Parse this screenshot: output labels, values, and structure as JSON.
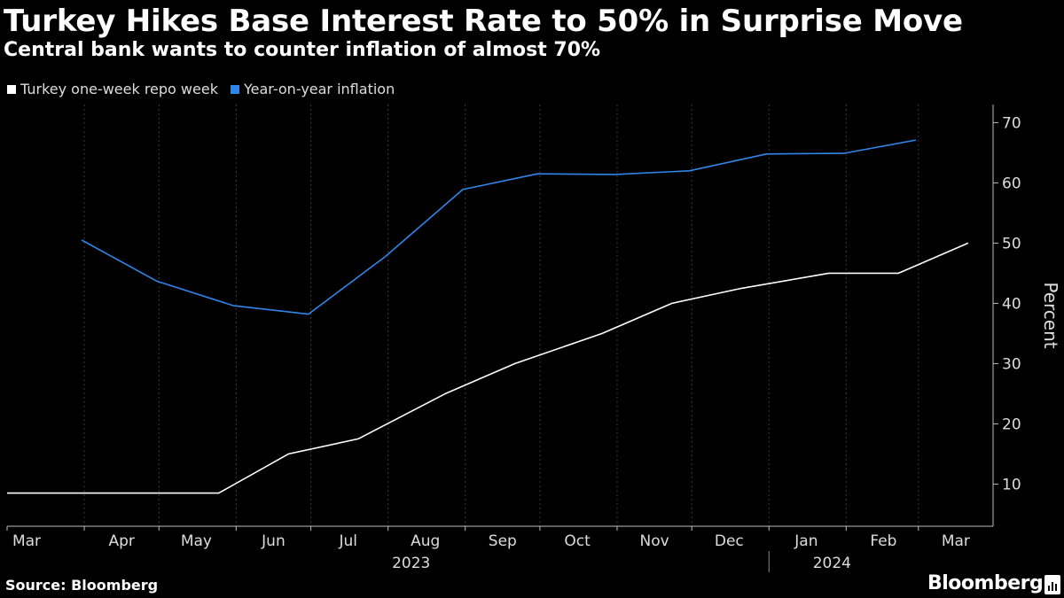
{
  "header": {
    "title": "Turkey Hikes Base Interest Rate to 50% in Surprise Move",
    "subtitle": "Central bank wants to counter inflation of almost 70%"
  },
  "footer": {
    "source": "Source: Bloomberg",
    "brand": "Bloomberg"
  },
  "colors": {
    "background": "#000000",
    "repo_series": "#ffffff",
    "inflation_series": "#2f86e8",
    "grid": "#3a3a3a"
  },
  "chart_data": {
    "type": "line",
    "title": "Turkey Hikes Base Interest Rate to 50% in Surprise Move",
    "subtitle": "Central bank wants to counter inflation of almost 70%",
    "ylabel": "Percent",
    "ylim": [
      3,
      73
    ],
    "yticks": [
      10,
      20,
      30,
      40,
      50,
      60,
      70
    ],
    "y_axis_side": "right",
    "grid": "vertical dotted at month boundaries",
    "legend_position": "top-left",
    "x_range": [
      "2023-03-01",
      "2024-03-31"
    ],
    "x_tick_labels": [
      {
        "label": "Mar",
        "date": "2023-03-01"
      },
      {
        "label": "Apr",
        "date": "2023-04-16"
      },
      {
        "label": "May",
        "date": "2023-05-16"
      },
      {
        "label": "Jun",
        "date": "2023-06-16"
      },
      {
        "label": "Jul",
        "date": "2023-07-16"
      },
      {
        "label": "Aug",
        "date": "2023-08-16"
      },
      {
        "label": "Sep",
        "date": "2023-09-16"
      },
      {
        "label": "Oct",
        "date": "2023-10-16"
      },
      {
        "label": "Nov",
        "date": "2023-11-16"
      },
      {
        "label": "Dec",
        "date": "2023-12-16"
      },
      {
        "label": "Jan",
        "date": "2024-01-16"
      },
      {
        "label": "Feb",
        "date": "2024-02-16"
      },
      {
        "label": "Mar",
        "date": "2024-03-16"
      }
    ],
    "year_labels": [
      {
        "label": "2023",
        "date": "2023-08-16"
      },
      {
        "label": "2024",
        "date": "2024-02-01"
      }
    ],
    "year_divider": "2024-01-01",
    "gridline_dates": [
      "2023-04-01",
      "2023-05-01",
      "2023-06-01",
      "2023-07-01",
      "2023-08-01",
      "2023-09-01",
      "2023-10-01",
      "2023-11-01",
      "2023-12-01",
      "2024-01-01",
      "2024-02-01",
      "2024-03-01"
    ],
    "series": [
      {
        "name": "Turkey one-week repo week",
        "points": [
          {
            "date": "2023-03-01",
            "value": 8.5
          },
          {
            "date": "2023-05-25",
            "value": 8.5
          },
          {
            "date": "2023-06-22",
            "value": 15
          },
          {
            "date": "2023-07-20",
            "value": 17.5
          },
          {
            "date": "2023-08-24",
            "value": 25
          },
          {
            "date": "2023-09-21",
            "value": 30
          },
          {
            "date": "2023-10-26",
            "value": 35
          },
          {
            "date": "2023-11-23",
            "value": 40
          },
          {
            "date": "2023-12-21",
            "value": 42.5
          },
          {
            "date": "2024-01-25",
            "value": 45
          },
          {
            "date": "2024-02-22",
            "value": 45
          },
          {
            "date": "2024-03-21",
            "value": 50
          }
        ]
      },
      {
        "name": "Year-on-year inflation",
        "points": [
          {
            "date": "2023-03-31",
            "value": 50.5
          },
          {
            "date": "2023-04-30",
            "value": 43.7
          },
          {
            "date": "2023-05-31",
            "value": 39.6
          },
          {
            "date": "2023-06-30",
            "value": 38.2
          },
          {
            "date": "2023-07-31",
            "value": 47.8
          },
          {
            "date": "2023-08-31",
            "value": 58.9
          },
          {
            "date": "2023-09-30",
            "value": 61.5
          },
          {
            "date": "2023-10-31",
            "value": 61.4
          },
          {
            "date": "2023-11-30",
            "value": 62.0
          },
          {
            "date": "2023-12-31",
            "value": 64.8
          },
          {
            "date": "2024-01-31",
            "value": 64.9
          },
          {
            "date": "2024-02-29",
            "value": 67.1
          }
        ]
      }
    ]
  }
}
